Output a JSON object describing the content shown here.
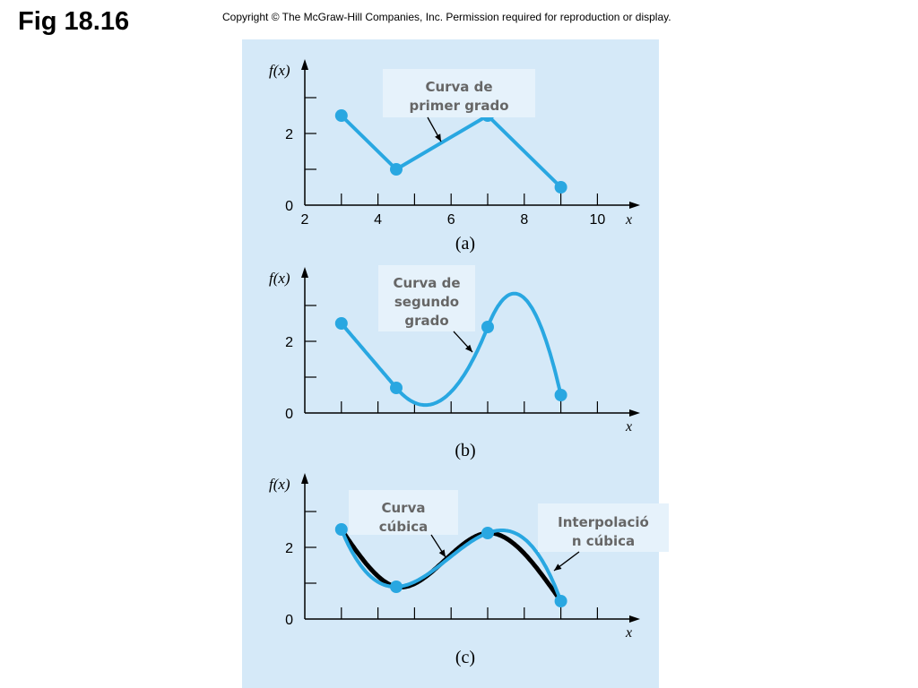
{
  "header": {
    "fig_title": "Fig 18.16",
    "copyright": "Copyright © The McGraw-Hill Companies, Inc. Permission required for reproduction or display."
  },
  "colors": {
    "panel_background": "#d5e9f8",
    "curve_blue": "#29a7e1",
    "curve_black": "#000000",
    "axis": "#000000",
    "callout_box": "#e6f2fb",
    "callout_text": "#666666"
  },
  "chart_data": [
    {
      "type": "line",
      "panel_label": "(a)",
      "ylabel": "f(x)",
      "xlabel": "x",
      "xlim": [
        2,
        11
      ],
      "ylim": [
        0,
        3.7
      ],
      "x_ticks": [
        2,
        4,
        6,
        8,
        10
      ],
      "y_tick_labels": [
        0,
        2
      ],
      "series": [
        {
          "interpolation": "linear",
          "x": [
            3,
            4.5,
            7,
            9
          ],
          "y": [
            2.5,
            1.0,
            2.5,
            0.5
          ]
        }
      ],
      "callouts": [
        {
          "lines": [
            "Curva de",
            "primer grado"
          ]
        }
      ]
    },
    {
      "type": "line",
      "panel_label": "(b)",
      "ylabel": "f(x)",
      "xlabel": "x",
      "xlim": [
        2,
        11
      ],
      "ylim": [
        0,
        3.7
      ],
      "x_ticks": [
        3,
        4,
        5,
        6,
        7,
        8,
        9,
        10
      ],
      "y_tick_labels": [
        0,
        2
      ],
      "series": [
        {
          "interpolation": "quadratic",
          "x": [
            3,
            4.5,
            7,
            9
          ],
          "y": [
            2.5,
            0.7,
            2.4,
            0.5
          ]
        }
      ],
      "callouts": [
        {
          "lines": [
            "Curva de",
            "segundo",
            "grado"
          ]
        }
      ]
    },
    {
      "type": "line",
      "panel_label": "(c)",
      "ylabel": "f(x)",
      "xlabel": "x",
      "xlim": [
        2,
        11
      ],
      "ylim": [
        0,
        3.7
      ],
      "x_ticks": [
        3,
        4,
        5,
        6,
        7,
        8,
        9,
        10
      ],
      "y_tick_labels": [
        0,
        2
      ],
      "series": [
        {
          "interpolation": "cubic",
          "x": [
            3,
            4.5,
            7,
            9
          ],
          "y": [
            2.5,
            0.9,
            2.4,
            0.5
          ]
        },
        {
          "interpolation": "cubic-spline",
          "x": [
            3,
            4.5,
            7,
            9
          ],
          "y": [
            2.5,
            0.9,
            2.4,
            0.5
          ]
        }
      ],
      "callouts": [
        {
          "lines": [
            "Curva",
            "cúbica"
          ]
        },
        {
          "lines": [
            "Interpolació",
            "n cúbica"
          ]
        }
      ]
    }
  ]
}
